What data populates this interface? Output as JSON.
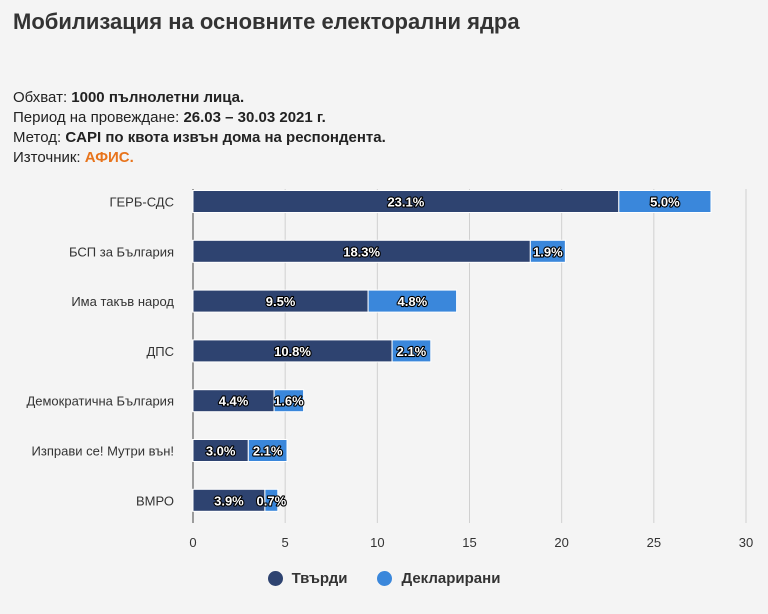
{
  "title": "Мобилизация на основните електорални ядра",
  "meta": [
    {
      "label": "Обхват: ",
      "value": "1000 пълнолетни лица."
    },
    {
      "label": "Период на провеждане: ",
      "value": "26.03 – 30.03 2021 г."
    },
    {
      "label": "Метод: ",
      "value": "CAPI по квота извън дома на респондента."
    },
    {
      "label": "Източник: ",
      "value": "АФИС."
    }
  ],
  "colors": {
    "series1": "#2e4370",
    "series2": "#3a87db",
    "source": "#e8741c"
  },
  "chart_data": {
    "type": "bar",
    "orientation": "horizontal",
    "stacked": true,
    "categories": [
      "ГЕРБ-СДС",
      "БСП за България",
      "Има такъв народ",
      "ДПС",
      "Демократична България",
      "Изправи се! Мутри вън!",
      "ВМРО"
    ],
    "series": [
      {
        "name": "Твърди",
        "color": "#2e4370",
        "values": [
          23.1,
          18.3,
          9.5,
          10.8,
          4.4,
          3.0,
          3.9
        ],
        "labels": [
          "23.1%",
          "18.3%",
          "9.5%",
          "10.8%",
          "4.4%",
          "3.0%",
          "3.9%"
        ]
      },
      {
        "name": "Декларирани",
        "color": "#3a87db",
        "values": [
          5.0,
          1.9,
          4.8,
          2.1,
          1.6,
          2.1,
          0.7
        ],
        "labels": [
          "5.0%",
          "1.9%",
          "4.8%",
          "2.1%",
          "1.6%",
          "2.1%",
          "0.7%"
        ]
      }
    ],
    "xlim": [
      0,
      30
    ],
    "xticks": [
      "0",
      "5",
      "10",
      "15",
      "20",
      "25",
      "30"
    ],
    "grid": true,
    "legend_position": "bottom"
  }
}
